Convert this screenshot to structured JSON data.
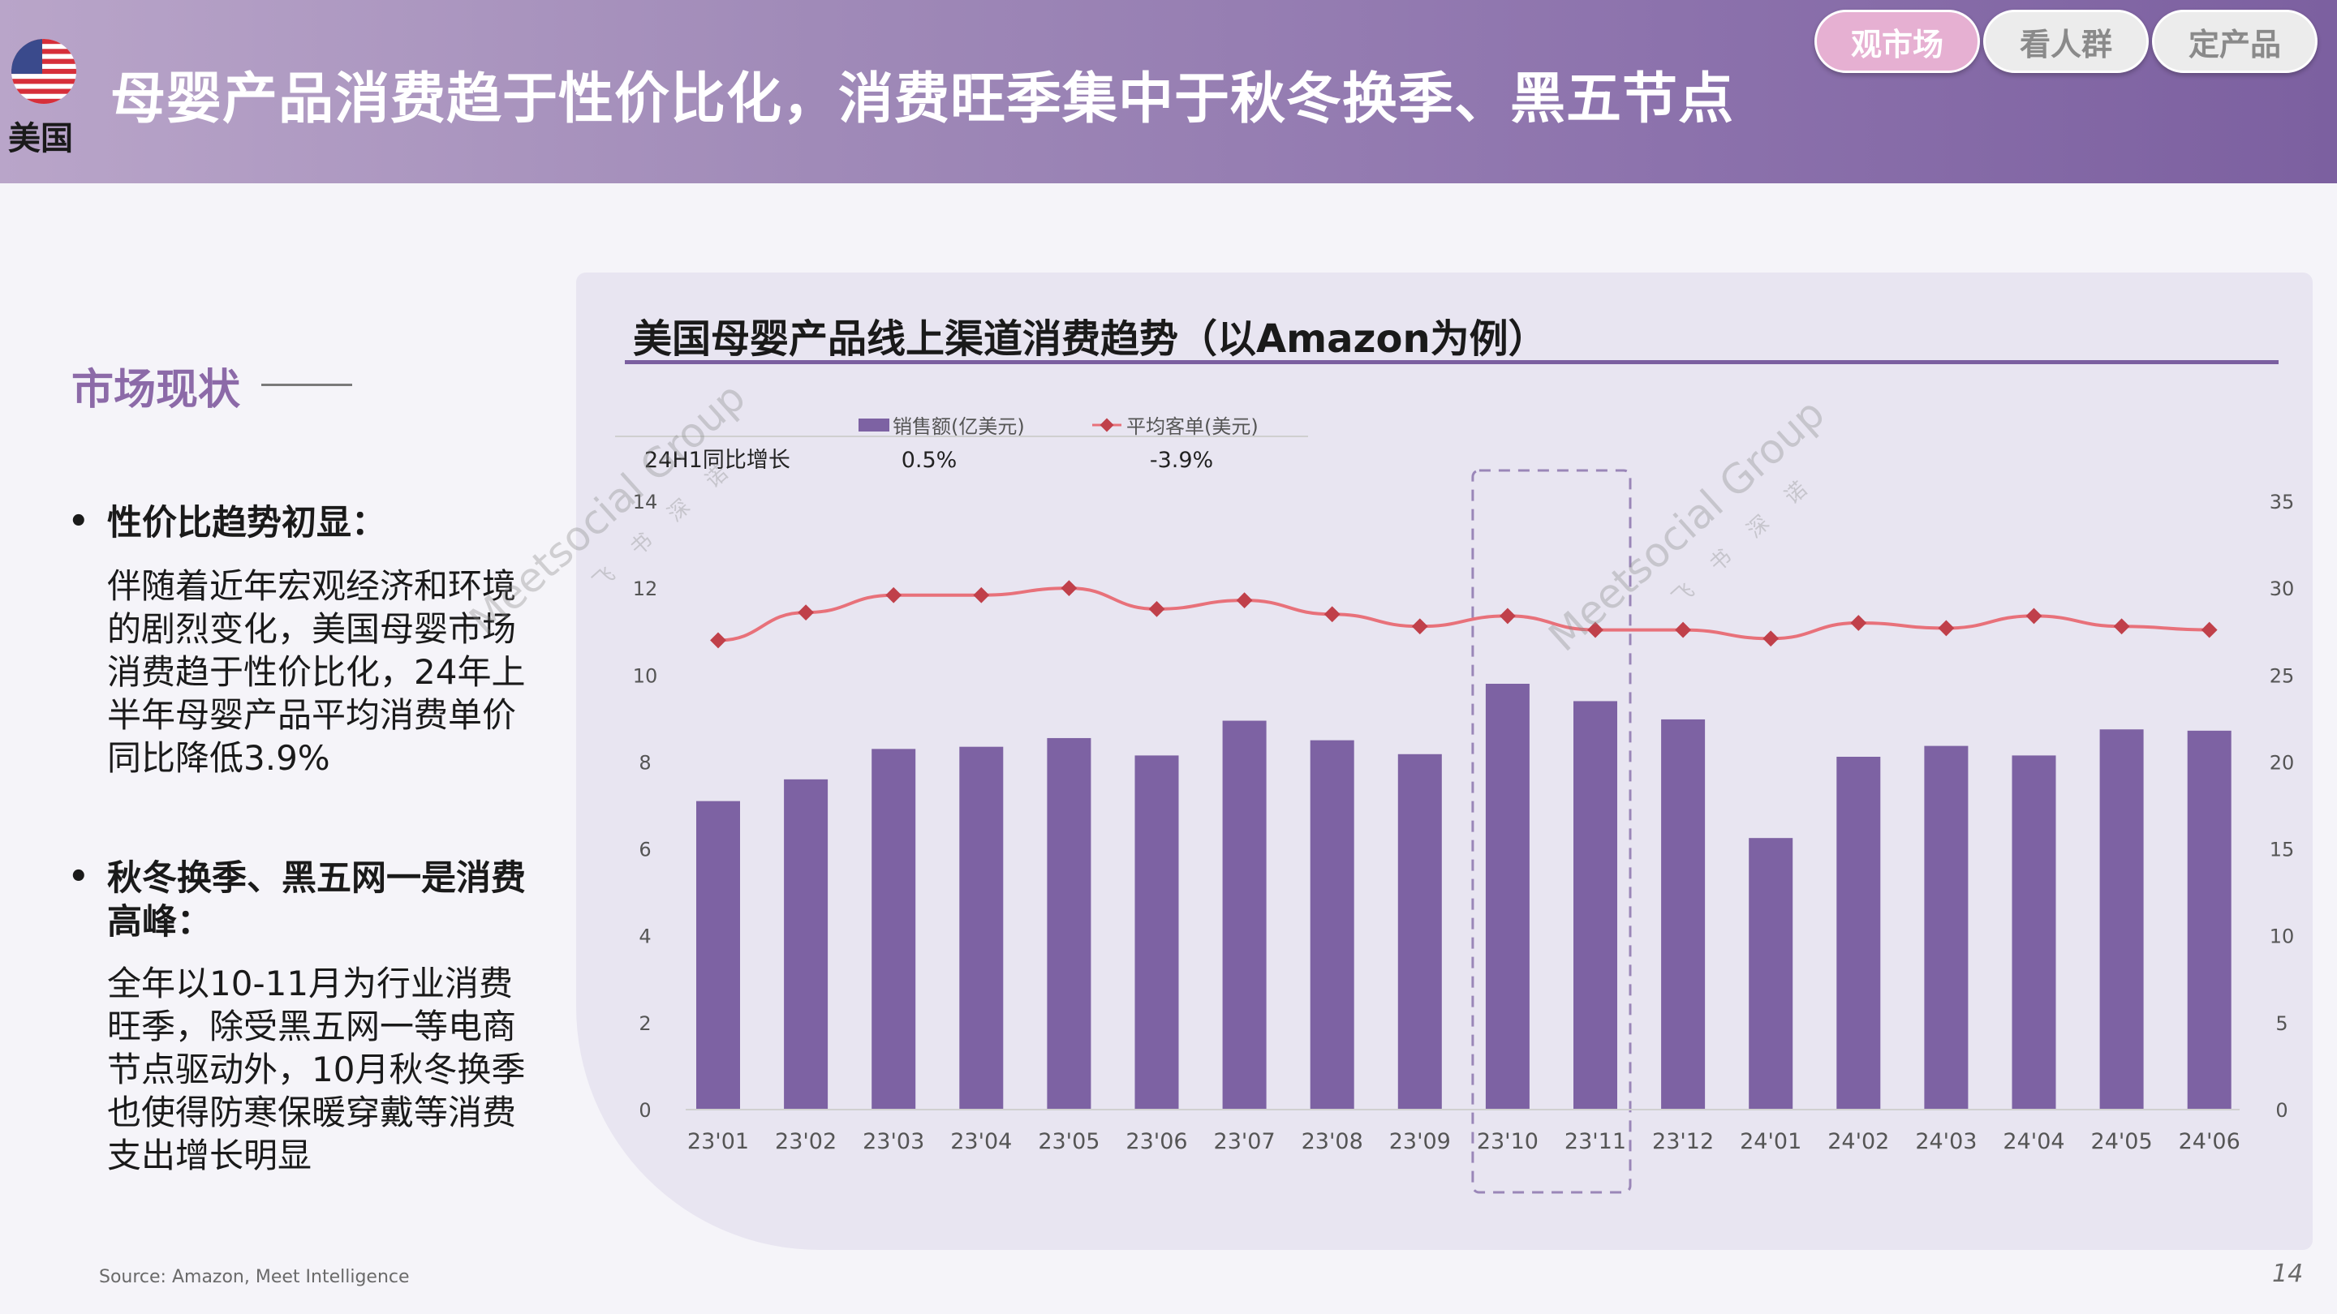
{
  "header": {
    "country": "美国",
    "title": "母婴产品消费趋于性价比化，消费旺季集中于秋冬换季、黑五节点",
    "nav": [
      {
        "label": "观市场",
        "active": true
      },
      {
        "label": "看人群",
        "active": false
      },
      {
        "label": "定产品",
        "active": false
      }
    ]
  },
  "left": {
    "section_title": "市场现状",
    "bullets": [
      {
        "head": "性价比趋势初显：",
        "body": "伴随着近年宏观经济和环境的剧烈变化，美国母婴市场消费趋于性价比化，24年上半年母婴产品平均消费单价同比降低3.9%"
      },
      {
        "head": "秋冬换季、黑五网一是消费高峰：",
        "body": "全年以10-11月为行业消费旺季，除受黑五网一等电商节点驱动外，10月秋冬换季也使得防寒保暖穿戴等消费支出增长明显"
      }
    ]
  },
  "chart_data": {
    "type": "bar",
    "title": "美国母婴产品线上渠道消费趋势（以Amazon为例）",
    "categories": [
      "23'01",
      "23'02",
      "23'03",
      "23'04",
      "23'05",
      "23'06",
      "23'07",
      "23'08",
      "23'09",
      "23'10",
      "23'11",
      "23'12",
      "24'01",
      "24'02",
      "24'03",
      "24'04",
      "24'05",
      "24'06"
    ],
    "series": [
      {
        "name": "销售额(亿美元)",
        "type": "bar",
        "axis": "left",
        "color": "#7d62a3",
        "values": [
          7.1,
          7.6,
          8.3,
          8.35,
          8.55,
          8.15,
          8.95,
          8.5,
          8.18,
          9.8,
          9.4,
          8.98,
          6.25,
          8.12,
          8.37,
          8.15,
          8.75,
          8.72
        ]
      },
      {
        "name": "平均客单(美元)",
        "type": "line",
        "axis": "right",
        "color": "#e8717a",
        "marker_color": "#c0404a",
        "values": [
          27.0,
          28.6,
          29.6,
          29.6,
          30.0,
          28.8,
          29.3,
          28.5,
          27.8,
          28.4,
          27.6,
          27.6,
          27.1,
          28.0,
          27.7,
          28.4,
          27.8,
          27.6
        ]
      }
    ],
    "y_left": {
      "min": 0,
      "max": 14,
      "ticks": [
        0,
        2,
        4,
        6,
        8,
        10,
        12,
        14
      ]
    },
    "y_right": {
      "min": 0,
      "max": 35,
      "ticks": [
        0,
        5,
        10,
        15,
        20,
        25,
        30,
        35
      ]
    },
    "legend_position": "top",
    "growth_table": {
      "label": "24H1同比增长",
      "values": [
        "0.5%",
        "-3.9%"
      ]
    },
    "highlight_categories": [
      "23'10",
      "23'11"
    ],
    "grid": false
  },
  "footer": {
    "source": "Source: Amazon, Meet Intelligence",
    "page": "14"
  },
  "watermark": {
    "text": "Meetsocial Group",
    "sub": "飞 书 深 诺"
  }
}
